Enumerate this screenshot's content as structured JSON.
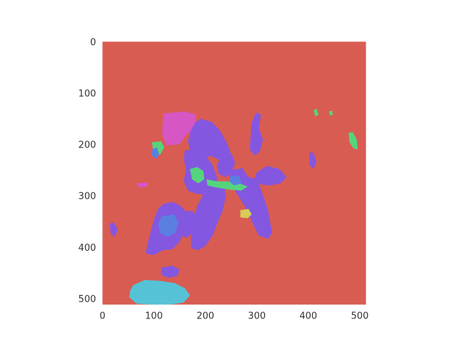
{
  "chart_data": {
    "type": "heatmap",
    "description_free": true,
    "x": {
      "lim": [
        0,
        512
      ],
      "ticks": [
        0,
        100,
        200,
        300,
        400,
        500
      ]
    },
    "y": {
      "lim": [
        0,
        512
      ],
      "inverted": true,
      "ticks": [
        0,
        100,
        200,
        300,
        400,
        500
      ]
    },
    "grid": false,
    "colors": {
      "background": "#d95c52",
      "violet": "#8457e0",
      "magenta": "#d656c4",
      "green": "#55d47e",
      "blue": "#5a7fe0",
      "cyan": "#56c2d6",
      "yellow": "#d6cc56"
    },
    "regions": [
      {
        "label": "magenta",
        "points": [
          [
            118,
            140
          ],
          [
            160,
            136
          ],
          [
            182,
            142
          ],
          [
            180,
            170
          ],
          [
            162,
            182
          ],
          [
            150,
            200
          ],
          [
            124,
            202
          ],
          [
            116,
            180
          ]
        ]
      },
      {
        "label": "violet",
        "points": [
          [
            190,
            150
          ],
          [
            212,
            156
          ],
          [
            228,
            172
          ],
          [
            240,
            194
          ],
          [
            248,
            212
          ],
          [
            244,
            232
          ],
          [
            226,
            230
          ],
          [
            210,
            222
          ],
          [
            196,
            232
          ],
          [
            180,
            222
          ],
          [
            170,
            212
          ],
          [
            166,
            194
          ],
          [
            172,
            172
          ],
          [
            180,
            158
          ]
        ]
      },
      {
        "label": "violet",
        "points": [
          [
            298,
            138
          ],
          [
            308,
            142
          ],
          [
            304,
            170
          ],
          [
            312,
            190
          ],
          [
            306,
            214
          ],
          [
            296,
            222
          ],
          [
            286,
            210
          ],
          [
            288,
            182
          ],
          [
            290,
            158
          ]
        ]
      },
      {
        "label": "violet",
        "points": [
          [
            232,
            220
          ],
          [
            250,
            216
          ],
          [
            258,
            236
          ],
          [
            250,
            256
          ],
          [
            240,
            264
          ],
          [
            226,
            258
          ],
          [
            222,
            240
          ]
        ]
      },
      {
        "label": "violet",
        "points": [
          [
            160,
            212
          ],
          [
            182,
            210
          ],
          [
            198,
            222
          ],
          [
            212,
            236
          ],
          [
            222,
            262
          ],
          [
            224,
            286
          ],
          [
            214,
            300
          ],
          [
            196,
            298
          ],
          [
            182,
            296
          ],
          [
            166,
            290
          ],
          [
            158,
            272
          ],
          [
            162,
            248
          ],
          [
            158,
            230
          ]
        ]
      },
      {
        "label": "violet",
        "points": [
          [
            250,
            250
          ],
          [
            272,
            246
          ],
          [
            282,
            262
          ],
          [
            270,
            280
          ],
          [
            252,
            282
          ],
          [
            246,
            266
          ]
        ]
      },
      {
        "label": "violet",
        "points": [
          [
            300,
            254
          ],
          [
            320,
            242
          ],
          [
            344,
            248
          ],
          [
            358,
            264
          ],
          [
            346,
            276
          ],
          [
            326,
            280
          ],
          [
            306,
            278
          ],
          [
            296,
            266
          ]
        ]
      },
      {
        "label": "violet",
        "points": [
          [
            258,
            274
          ],
          [
            280,
            262
          ],
          [
            300,
            268
          ],
          [
            308,
            288
          ],
          [
            316,
            310
          ],
          [
            322,
            330
          ],
          [
            326,
            352
          ],
          [
            330,
            372
          ],
          [
            322,
            384
          ],
          [
            304,
            378
          ],
          [
            292,
            354
          ],
          [
            282,
            330
          ],
          [
            270,
            310
          ],
          [
            258,
            292
          ]
        ]
      },
      {
        "label": "violet",
        "points": [
          [
            220,
            276
          ],
          [
            236,
            278
          ],
          [
            240,
            300
          ],
          [
            234,
            328
          ],
          [
            224,
            352
          ],
          [
            214,
            378
          ],
          [
            200,
            398
          ],
          [
            186,
            406
          ],
          [
            172,
            402
          ],
          [
            172,
            380
          ],
          [
            176,
            352
          ],
          [
            184,
            320
          ],
          [
            198,
            294
          ],
          [
            206,
            282
          ]
        ]
      },
      {
        "label": "violet",
        "points": [
          [
            118,
            316
          ],
          [
            136,
            312
          ],
          [
            150,
            318
          ],
          [
            162,
            330
          ],
          [
            164,
            352
          ],
          [
            158,
            374
          ],
          [
            148,
            392
          ],
          [
            136,
            404
          ],
          [
            118,
            406
          ],
          [
            98,
            416
          ],
          [
            84,
            412
          ],
          [
            88,
            392
          ],
          [
            94,
            370
          ],
          [
            100,
            346
          ],
          [
            108,
            326
          ]
        ]
      },
      {
        "label": "violet",
        "points": [
          [
            146,
            330
          ],
          [
            176,
            330
          ],
          [
            186,
            344
          ],
          [
            180,
            368
          ],
          [
            164,
            382
          ],
          [
            150,
            376
          ],
          [
            144,
            352
          ]
        ]
      },
      {
        "label": "blue",
        "points": [
          [
            116,
            340
          ],
          [
            138,
            336
          ],
          [
            148,
            352
          ],
          [
            142,
            372
          ],
          [
            126,
            380
          ],
          [
            112,
            372
          ],
          [
            108,
            354
          ]
        ]
      },
      {
        "label": "violet",
        "points": [
          [
            114,
            440
          ],
          [
            136,
            436
          ],
          [
            150,
            444
          ],
          [
            146,
            456
          ],
          [
            128,
            460
          ],
          [
            114,
            454
          ]
        ]
      },
      {
        "label": "violet",
        "points": [
          [
            14,
            354
          ],
          [
            22,
            352
          ],
          [
            30,
            366
          ],
          [
            24,
            380
          ],
          [
            16,
            374
          ]
        ]
      },
      {
        "label": "violet",
        "points": [
          [
            402,
            216
          ],
          [
            410,
            216
          ],
          [
            416,
            234
          ],
          [
            410,
            248
          ],
          [
            402,
            240
          ]
        ]
      },
      {
        "label": "cyan",
        "points": [
          [
            60,
            474
          ],
          [
            82,
            464
          ],
          [
            112,
            466
          ],
          [
            140,
            470
          ],
          [
            160,
            480
          ],
          [
            170,
            494
          ],
          [
            158,
            508
          ],
          [
            130,
            512
          ],
          [
            96,
            512
          ],
          [
            66,
            510
          ],
          [
            52,
            498
          ],
          [
            54,
            484
          ]
        ]
      },
      {
        "label": "green",
        "points": [
          [
            170,
            248
          ],
          [
            184,
            244
          ],
          [
            196,
            252
          ],
          [
            198,
            268
          ],
          [
            186,
            276
          ],
          [
            174,
            268
          ]
        ]
      },
      {
        "label": "green",
        "points": [
          [
            202,
            268
          ],
          [
            222,
            272
          ],
          [
            244,
            272
          ],
          [
            266,
            276
          ],
          [
            282,
            282
          ],
          [
            270,
            290
          ],
          [
            246,
            288
          ],
          [
            222,
            284
          ],
          [
            204,
            280
          ]
        ]
      },
      {
        "label": "green",
        "points": [
          [
            96,
            196
          ],
          [
            114,
            194
          ],
          [
            120,
            206
          ],
          [
            112,
            220
          ],
          [
            100,
            218
          ]
        ]
      },
      {
        "label": "green",
        "points": [
          [
            478,
            178
          ],
          [
            486,
            176
          ],
          [
            494,
            190
          ],
          [
            496,
            210
          ],
          [
            488,
            208
          ],
          [
            480,
            196
          ]
        ]
      },
      {
        "label": "green",
        "points": [
          [
            410,
            134
          ],
          [
            416,
            130
          ],
          [
            420,
            142
          ],
          [
            414,
            146
          ]
        ]
      },
      {
        "label": "green",
        "points": [
          [
            440,
            136
          ],
          [
            446,
            134
          ],
          [
            448,
            142
          ],
          [
            442,
            144
          ]
        ]
      },
      {
        "label": "blue",
        "points": [
          [
            248,
            262
          ],
          [
            266,
            262
          ],
          [
            270,
            276
          ],
          [
            256,
            280
          ],
          [
            246,
            272
          ]
        ]
      },
      {
        "label": "yellow",
        "points": [
          [
            268,
            328
          ],
          [
            284,
            326
          ],
          [
            290,
            336
          ],
          [
            282,
            344
          ],
          [
            268,
            342
          ]
        ]
      },
      {
        "label": "blue",
        "points": [
          [
            96,
            210
          ],
          [
            106,
            206
          ],
          [
            110,
            220
          ],
          [
            104,
            228
          ],
          [
            96,
            222
          ]
        ]
      },
      {
        "label": "magenta",
        "points": [
          [
            66,
            276
          ],
          [
            86,
            274
          ],
          [
            88,
            282
          ],
          [
            70,
            284
          ]
        ]
      }
    ]
  }
}
